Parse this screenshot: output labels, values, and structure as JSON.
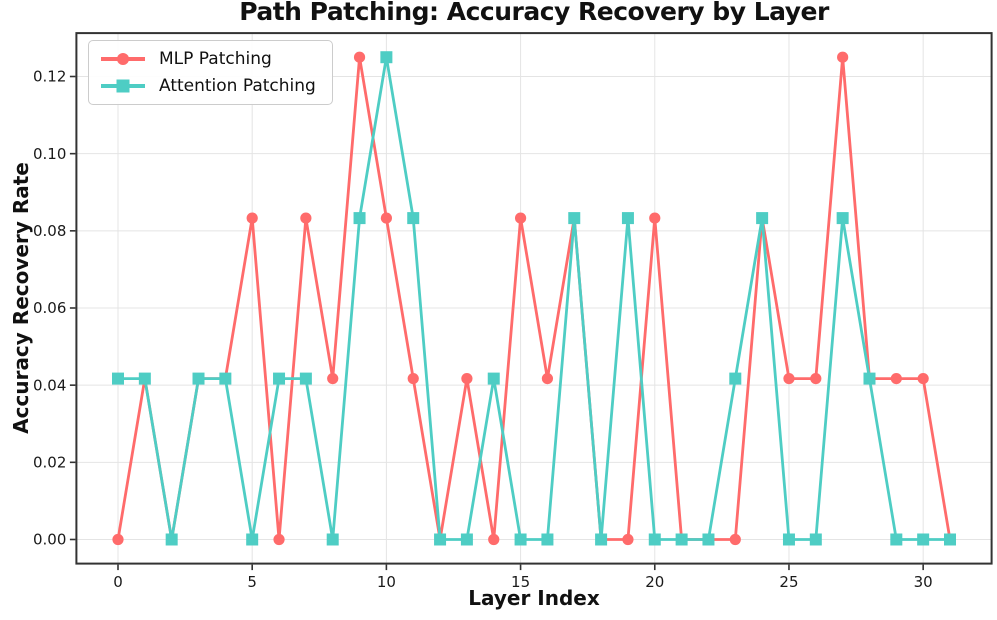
{
  "chart_data": {
    "type": "line",
    "title": "Path Patching: Accuracy Recovery by Layer",
    "xlabel": "Layer Index",
    "ylabel": "Accuracy Recovery Rate",
    "x": [
      0,
      1,
      2,
      3,
      4,
      5,
      6,
      7,
      8,
      9,
      10,
      11,
      12,
      13,
      14,
      15,
      16,
      17,
      18,
      19,
      20,
      21,
      22,
      23,
      24,
      25,
      26,
      27,
      28,
      29,
      30,
      31
    ],
    "series": [
      {
        "name": "MLP Patching",
        "color": "#FF6B6B",
        "marker": "circle",
        "values": [
          0.0,
          0.0417,
          0.0,
          0.0417,
          0.0417,
          0.0833,
          0.0,
          0.0833,
          0.0417,
          0.125,
          0.0833,
          0.0417,
          0.0,
          0.0417,
          0.0,
          0.0833,
          0.0417,
          0.0833,
          0.0,
          0.0,
          0.0833,
          0.0,
          0.0,
          0.0,
          0.0833,
          0.0417,
          0.0417,
          0.125,
          0.0417,
          0.0417,
          0.0417,
          0.0
        ]
      },
      {
        "name": "Attention Patching",
        "color": "#4ECDC4",
        "marker": "square",
        "values": [
          0.0417,
          0.0417,
          0.0,
          0.0417,
          0.0417,
          0.0,
          0.0417,
          0.0417,
          0.0,
          0.0833,
          0.125,
          0.0833,
          0.0,
          0.0,
          0.0417,
          0.0,
          0.0,
          0.0833,
          0.0,
          0.0833,
          0.0,
          0.0,
          0.0,
          0.0417,
          0.0833,
          0.0,
          0.0,
          0.0833,
          0.0417,
          0.0,
          0.0,
          0.0
        ]
      }
    ],
    "xlim": [
      -1.55,
      32.55
    ],
    "ylim": [
      -0.00625,
      0.13125
    ],
    "xticks": [
      0,
      5,
      10,
      15,
      20,
      25,
      30
    ],
    "xtick_labels": [
      "0",
      "5",
      "10",
      "15",
      "20",
      "25",
      "30"
    ],
    "yticks": [
      0.0,
      0.02,
      0.04,
      0.06,
      0.08,
      0.1,
      0.12
    ],
    "ytick_labels": [
      "0.00",
      "0.02",
      "0.04",
      "0.06",
      "0.08",
      "0.10",
      "0.12"
    ],
    "grid": true,
    "legend_position": "upper-left"
  }
}
